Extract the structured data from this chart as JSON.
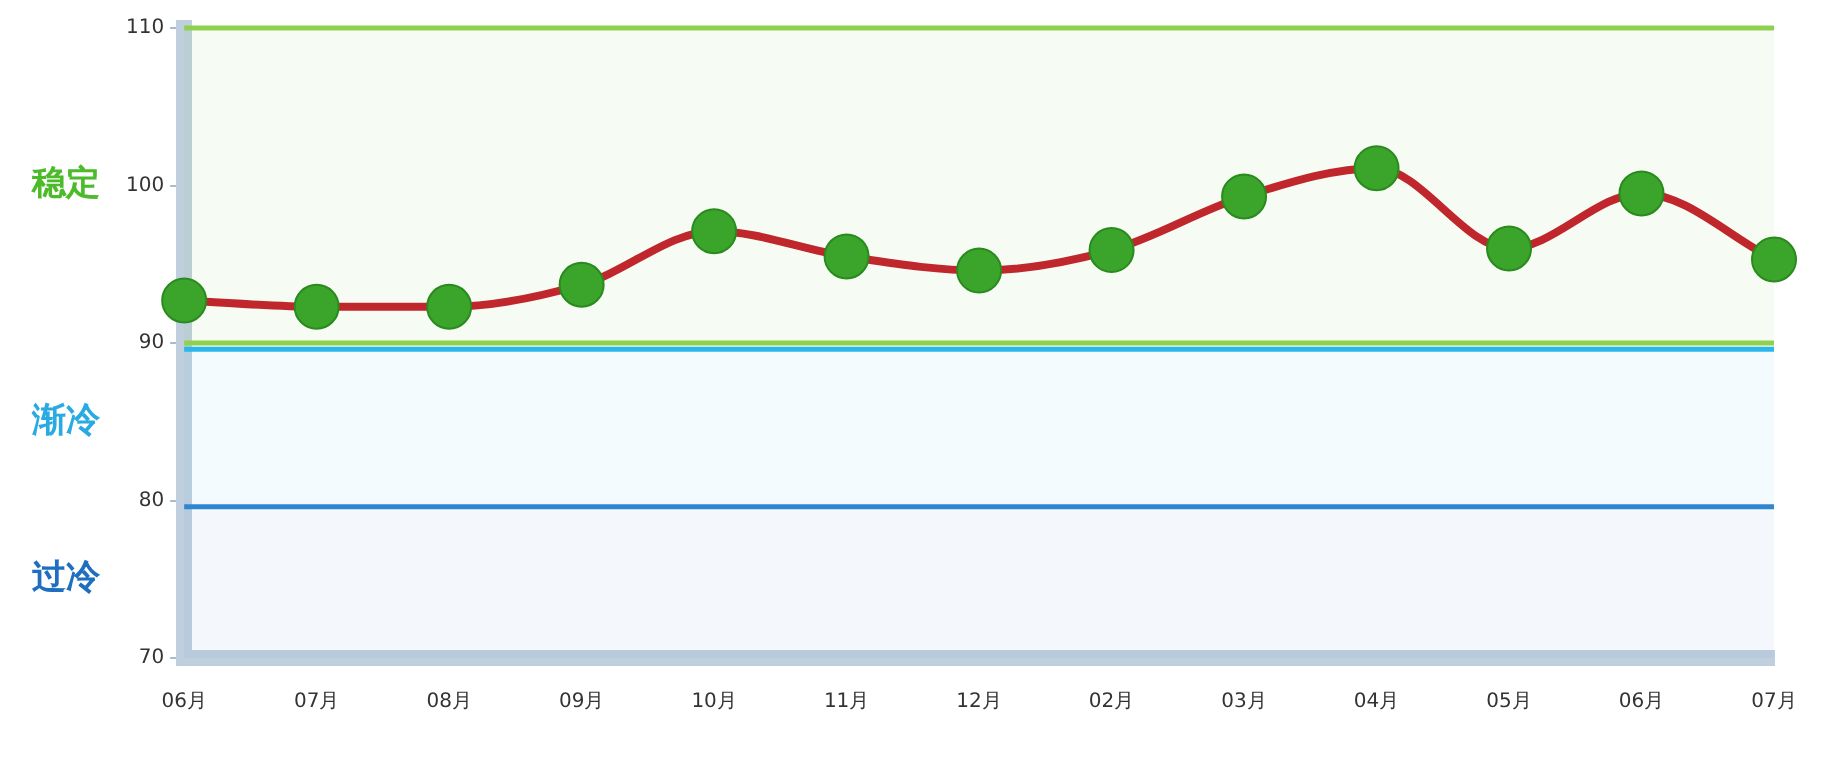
{
  "chart_data": {
    "type": "line",
    "categories": [
      "06月",
      "07月",
      "08月",
      "09月",
      "10月",
      "11月",
      "12月",
      "02月",
      "03月",
      "04月",
      "05月",
      "06月",
      "07月"
    ],
    "series": [
      {
        "color": "#c0272d",
        "values": [
          92.7,
          92.3,
          92.3,
          93.7,
          97.1,
          95.5,
          94.6,
          95.9,
          99.3,
          101.1,
          96.0,
          99.5,
          95.3
        ]
      }
    ],
    "ylim": [
      70,
      110
    ],
    "yticks": [
      70,
      80,
      90,
      100,
      110
    ],
    "grid": false,
    "legend": false,
    "marker": "circle",
    "line_style": "solid",
    "ref_lines": [
      {
        "axis": "y",
        "value": 110,
        "color": "#8fd14f"
      },
      {
        "axis": "y",
        "value": 90,
        "color": "#8fd14f"
      },
      {
        "axis": "y",
        "value": 89.6,
        "color": "#29b6e8"
      },
      {
        "axis": "y",
        "value": 79.6,
        "color": "#2f86d0"
      }
    ],
    "bands": [
      {
        "axis": "y",
        "from": 90,
        "to": 110,
        "label": "稳定",
        "color": "#4cbb2a"
      },
      {
        "axis": "y",
        "from": 80,
        "to": 90,
        "label": "渐冷",
        "color": "#29abe2"
      },
      {
        "axis": "y",
        "from": 70,
        "to": 80,
        "label": "过冷",
        "color": "#1f6fc0"
      }
    ]
  }
}
